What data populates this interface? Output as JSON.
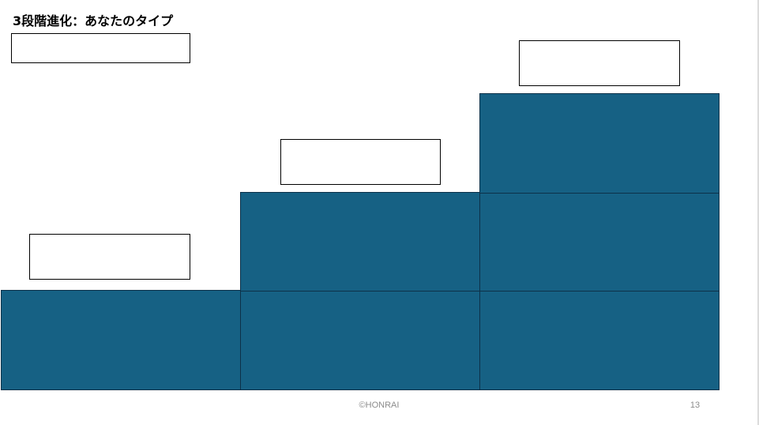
{
  "slide": {
    "title": "3段階進化：あなたのタイプ",
    "copyright": "©HONRAI",
    "page_number": "13"
  },
  "colors": {
    "step_fill": "#166184",
    "step_border": "#0d3149",
    "label_border": "#000000",
    "footer_text": "#8c8c8c"
  },
  "diagram": {
    "type": "staircase",
    "levels": [
      {
        "name": "level-1",
        "blocks": 1,
        "label": ""
      },
      {
        "name": "level-2",
        "blocks": 2,
        "label": ""
      },
      {
        "name": "level-3",
        "blocks": 3,
        "label": ""
      }
    ],
    "legend_box": {
      "label": ""
    }
  }
}
